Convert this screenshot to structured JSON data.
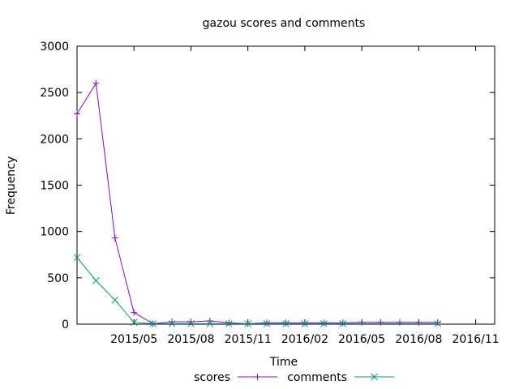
{
  "chart_data": {
    "type": "line",
    "title": "gazou scores and comments",
    "xlabel": "Time",
    "ylabel": "Frequency",
    "x_ticks": [
      "2015/05",
      "2015/08",
      "2015/11",
      "2016/02",
      "2016/05",
      "2016/08",
      "2016/11"
    ],
    "y_ticks": [
      0,
      500,
      1000,
      1500,
      2000,
      2500,
      3000
    ],
    "ylim": [
      0,
      3000
    ],
    "xlim": [
      "2015/02",
      "2016/12"
    ],
    "grid": false,
    "legend_position": "bottom-center",
    "x": [
      "2015/02",
      "2015/03",
      "2015/04",
      "2015/05",
      "2015/06",
      "2015/07",
      "2015/08",
      "2015/09",
      "2015/10",
      "2015/11",
      "2015/12",
      "2016/01",
      "2016/02",
      "2016/03",
      "2016/04",
      "2016/05",
      "2016/06",
      "2016/07",
      "2016/08",
      "2016/09"
    ],
    "series": [
      {
        "name": "scores",
        "color": "#9400d3",
        "marker": "plus",
        "values": [
          2270,
          2600,
          930,
          125,
          5,
          25,
          25,
          35,
          15,
          5,
          15,
          15,
          15,
          15,
          15,
          20,
          20,
          20,
          20,
          20
        ]
      },
      {
        "name": "comments",
        "color": "#009e73",
        "marker": "cross",
        "values": [
          720,
          470,
          260,
          20,
          5,
          5,
          5,
          5,
          5,
          5,
          5,
          5,
          5,
          5,
          5,
          null,
          null,
          null,
          null,
          5
        ]
      }
    ]
  }
}
